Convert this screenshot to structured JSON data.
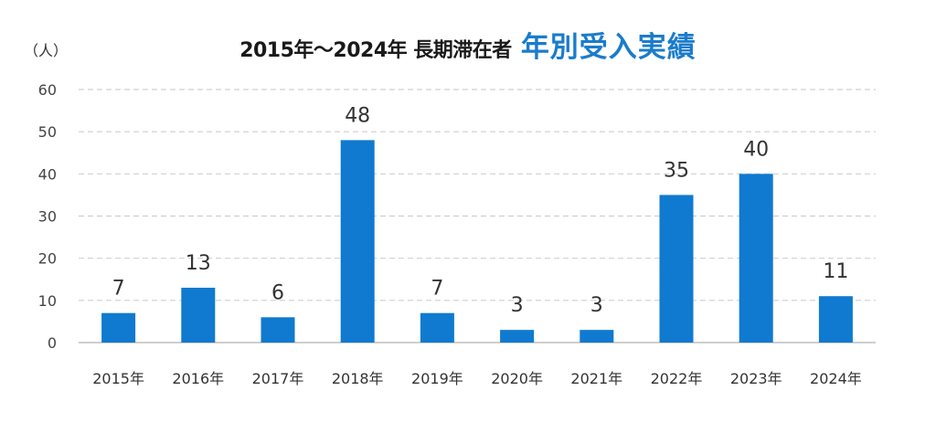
{
  "chart_data": {
    "type": "bar",
    "title": "2015年～2024年 長期滞在者",
    "title_accent": "年別受入実績",
    "ylabel": "（人）",
    "xlabel": "",
    "categories": [
      "2015年",
      "2016年",
      "2017年",
      "2018年",
      "2019年",
      "2020年",
      "2021年",
      "2022年",
      "2023年",
      "2024年"
    ],
    "values": [
      7,
      13,
      6,
      48,
      7,
      3,
      3,
      35,
      40,
      11
    ],
    "yticks": [
      0,
      10,
      20,
      30,
      40,
      50,
      60
    ],
    "ylim": [
      0,
      60
    ],
    "grid": true,
    "legend": "none",
    "bar_color": "#0f7acf",
    "accent_color": "#1a7ccc"
  }
}
